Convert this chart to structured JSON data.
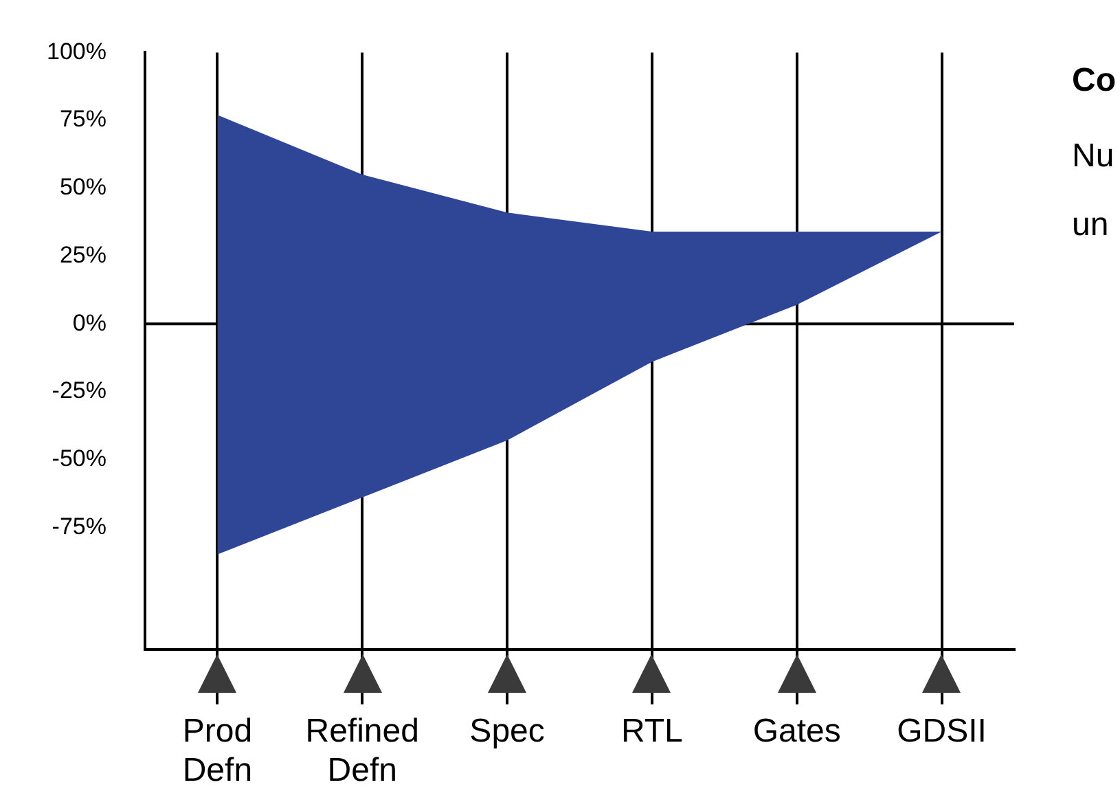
{
  "chart_data": {
    "type": "line",
    "categories": [
      "Prod\nDefn",
      "Refined\nDefn",
      "Spec",
      "RTL",
      "Gates",
      "GDSII"
    ],
    "series": [
      {
        "color": "#2f4596",
        "values": [
          null,
          null,
          null,
          null,
          null,
          null
        ],
        "lower": [
          -85,
          -64,
          -43,
          -14,
          7,
          34
        ],
        "upper": [
          77,
          55,
          41,
          34,
          34,
          34
        ]
      }
    ],
    "ylim": [
      -120,
      100
    ],
    "yticks": [
      {
        "value": 100,
        "label": "100%"
      },
      {
        "value": 75,
        "label": "75%"
      },
      {
        "value": 50,
        "label": "50%"
      },
      {
        "value": 25,
        "label": "25%"
      },
      {
        "value": 0,
        "label": "0%"
      },
      {
        "value": -25,
        "label": "-25%"
      },
      {
        "value": -50,
        "label": "-50%"
      },
      {
        "value": -75,
        "label": "-75%"
      }
    ],
    "grid": "x",
    "ref_lines": [
      {
        "axis": "y",
        "value": 0
      }
    ],
    "legend": false,
    "annotations": [
      "Co",
      "Nu",
      "un"
    ]
  }
}
